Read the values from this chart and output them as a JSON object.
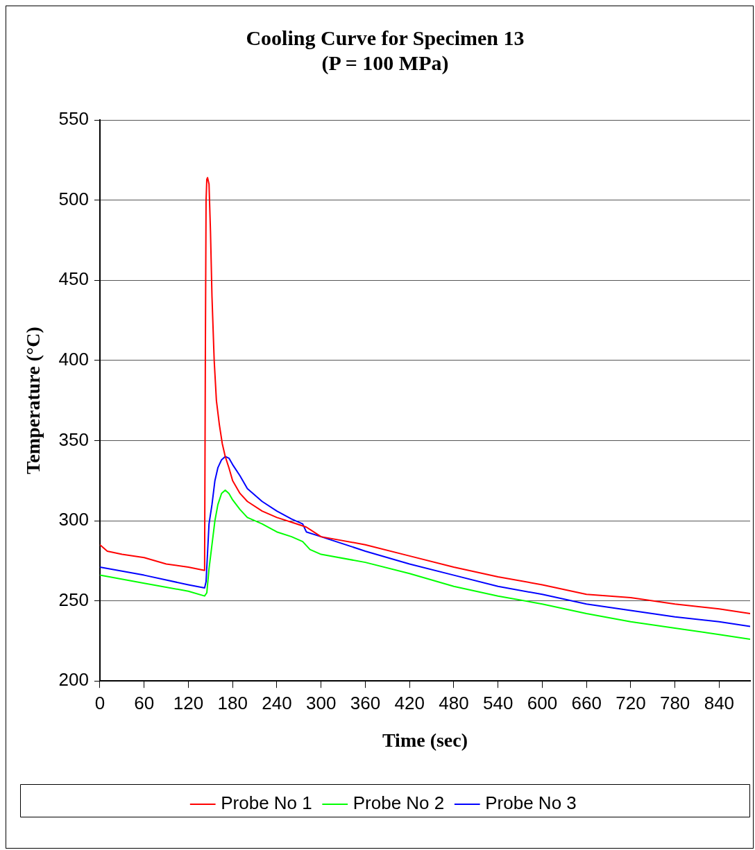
{
  "chart_data": {
    "type": "line",
    "title": "Cooling Curve for Specimen 13",
    "subtitle": "(P = 100 MPa)",
    "xlabel": "Time (sec)",
    "ylabel": "Temperature (°C)",
    "xlim": [
      0,
      882
    ],
    "xticks": [
      0,
      60,
      120,
      180,
      240,
      300,
      360,
      420,
      480,
      540,
      600,
      660,
      720,
      780,
      840
    ],
    "ylim": [
      200,
      550
    ],
    "yticks": [
      200,
      250,
      300,
      350,
      400,
      450,
      500,
      550
    ],
    "grid": "y",
    "legend": "bottom",
    "marker": "none",
    "line_style": "solid",
    "series": [
      {
        "name": "Probe No 1",
        "color": "#ff0000",
        "x": [
          0,
          10,
          30,
          60,
          90,
          120,
          142,
          143,
          144,
          145,
          146,
          148,
          150,
          152,
          155,
          158,
          162,
          166,
          170,
          175,
          180,
          190,
          200,
          220,
          240,
          260,
          280,
          300,
          360,
          420,
          480,
          540,
          600,
          660,
          720,
          780,
          840,
          882
        ],
        "values": [
          285,
          281,
          279,
          277,
          273,
          271,
          269,
          400,
          500,
          513,
          514,
          510,
          480,
          440,
          400,
          375,
          360,
          348,
          340,
          333,
          325,
          317,
          312,
          306,
          302,
          299,
          296,
          290,
          285,
          278,
          271,
          265,
          260,
          254,
          252,
          248,
          245,
          242
        ]
      },
      {
        "name": "Probe No 2",
        "color": "#00ff00",
        "x": [
          0,
          60,
          120,
          142,
          145,
          148,
          152,
          156,
          160,
          165,
          170,
          175,
          180,
          190,
          200,
          220,
          240,
          260,
          275,
          285,
          300,
          360,
          420,
          480,
          540,
          600,
          660,
          720,
          780,
          840,
          882
        ],
        "values": [
          266,
          261,
          256,
          253,
          255,
          270,
          285,
          300,
          310,
          317,
          319,
          317,
          313,
          307,
          302,
          298,
          293,
          290,
          287,
          282,
          279,
          274,
          267,
          259,
          253,
          248,
          242,
          237,
          233,
          229,
          226
        ]
      },
      {
        "name": "Probe No 3",
        "color": "#0000ff",
        "x": [
          0,
          60,
          120,
          142,
          144,
          146,
          148,
          152,
          156,
          160,
          165,
          170,
          175,
          180,
          190,
          200,
          220,
          240,
          260,
          275,
          280,
          300,
          360,
          420,
          480,
          540,
          600,
          660,
          720,
          780,
          840,
          882
        ],
        "values": [
          271,
          266,
          260,
          258,
          262,
          280,
          298,
          310,
          325,
          333,
          338,
          340,
          339,
          335,
          328,
          320,
          312,
          306,
          301,
          298,
          293,
          290,
          281,
          273,
          266,
          259,
          254,
          248,
          244,
          240,
          237,
          234
        ]
      }
    ]
  }
}
